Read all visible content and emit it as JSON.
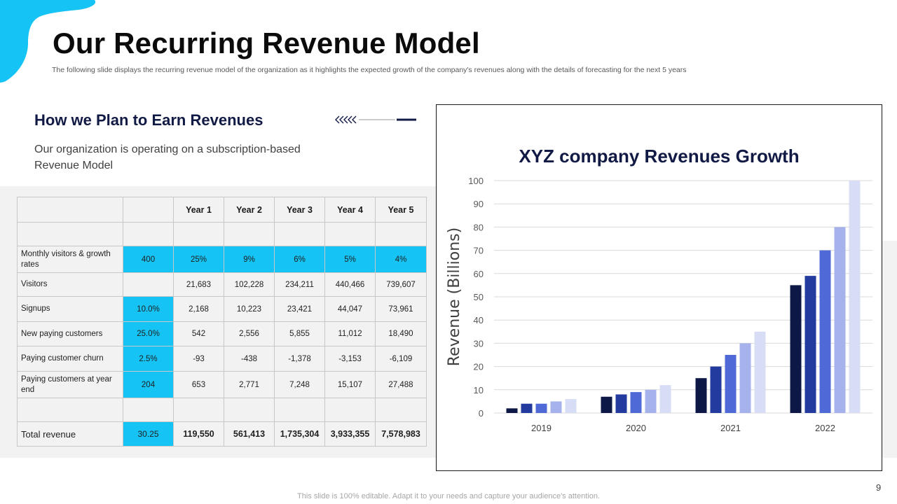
{
  "slide": {
    "title": "Our Recurring Revenue Model",
    "subtitle": "The following slide displays the recurring revenue model of the organization as it highlights the expected growth of the company's revenues along with the details of forecasting for the next 5 years",
    "section_heading": "How we Plan to Earn Revenues",
    "section_desc": "Our organization is operating on a subscription-based Revenue Model",
    "footer_note": "This slide is 100% editable. Adapt it to your needs and capture your audience's attention.",
    "page_number": "9",
    "colors": {
      "accent": "#16c3f5",
      "heading": "#111a44"
    }
  },
  "table": {
    "headers": [
      "",
      "",
      "Year 1",
      "Year 2",
      "Year 3",
      "Year 4",
      "Year 5"
    ],
    "rows": [
      {
        "label": "",
        "base": "",
        "values": [
          "",
          "",
          "",
          "",
          ""
        ],
        "highlight_all": false,
        "highlight_base": false
      },
      {
        "label": "Monthly visitors & growth rates",
        "base": "400",
        "values": [
          "25%",
          "9%",
          "6%",
          "5%",
          "4%"
        ],
        "highlight_all": true,
        "highlight_base": true
      },
      {
        "label": "Visitors",
        "base": "",
        "values": [
          "21,683",
          "102,228",
          "234,211",
          "440,466",
          "739,607"
        ],
        "highlight_all": false,
        "highlight_base": false
      },
      {
        "label": "Signups",
        "base": "10.0%",
        "values": [
          "2,168",
          "10,223",
          "23,421",
          "44,047",
          "73,961"
        ],
        "highlight_all": false,
        "highlight_base": true
      },
      {
        "label": "New paying customers",
        "base": "25.0%",
        "values": [
          "542",
          "2,556",
          "5,855",
          "11,012",
          "18,490"
        ],
        "highlight_all": false,
        "highlight_base": true
      },
      {
        "label": "Paying customer churn",
        "base": "2.5%",
        "values": [
          "-93",
          "-438",
          "-1,378",
          "-3,153",
          "-6,109"
        ],
        "highlight_all": false,
        "highlight_base": true
      },
      {
        "label": "Paying customers at year end",
        "base": "204",
        "values": [
          "653",
          "2,771",
          "7,248",
          "15,107",
          "27,488"
        ],
        "highlight_all": false,
        "highlight_base": true
      },
      {
        "label": "",
        "base": "",
        "values": [
          "",
          "",
          "",
          "",
          ""
        ],
        "highlight_all": false,
        "highlight_base": false
      },
      {
        "label": "Total revenue",
        "base": "30.25",
        "values": [
          "119,550",
          "561,413",
          "1,735,304",
          "3,933,355",
          "7,578,983"
        ],
        "highlight_all": false,
        "highlight_base": true,
        "total": true
      }
    ]
  },
  "chart_data": {
    "type": "bar",
    "title": "XYZ company Revenues Growth",
    "xlabel": "",
    "ylabel": "Revenue (Billions)",
    "ylim": [
      0,
      100
    ],
    "yticks": [
      0,
      10,
      20,
      30,
      40,
      50,
      60,
      70,
      80,
      90,
      100
    ],
    "categories": [
      "2019",
      "2020",
      "2021",
      "2022"
    ],
    "grid": true,
    "legend": "none",
    "series": [
      {
        "name": "Series 1",
        "color": "#0d1846",
        "values": [
          2,
          7,
          15,
          55
        ]
      },
      {
        "name": "Series 2",
        "color": "#233a9e",
        "values": [
          4,
          8,
          20,
          59
        ]
      },
      {
        "name": "Series 3",
        "color": "#4f6ad6",
        "values": [
          4,
          9,
          25,
          70
        ]
      },
      {
        "name": "Series 4",
        "color": "#a6b2ec",
        "values": [
          5,
          10,
          30,
          80
        ]
      },
      {
        "name": "Series 5",
        "color": "#d8ddf6",
        "values": [
          6,
          12,
          35,
          100
        ]
      }
    ]
  }
}
